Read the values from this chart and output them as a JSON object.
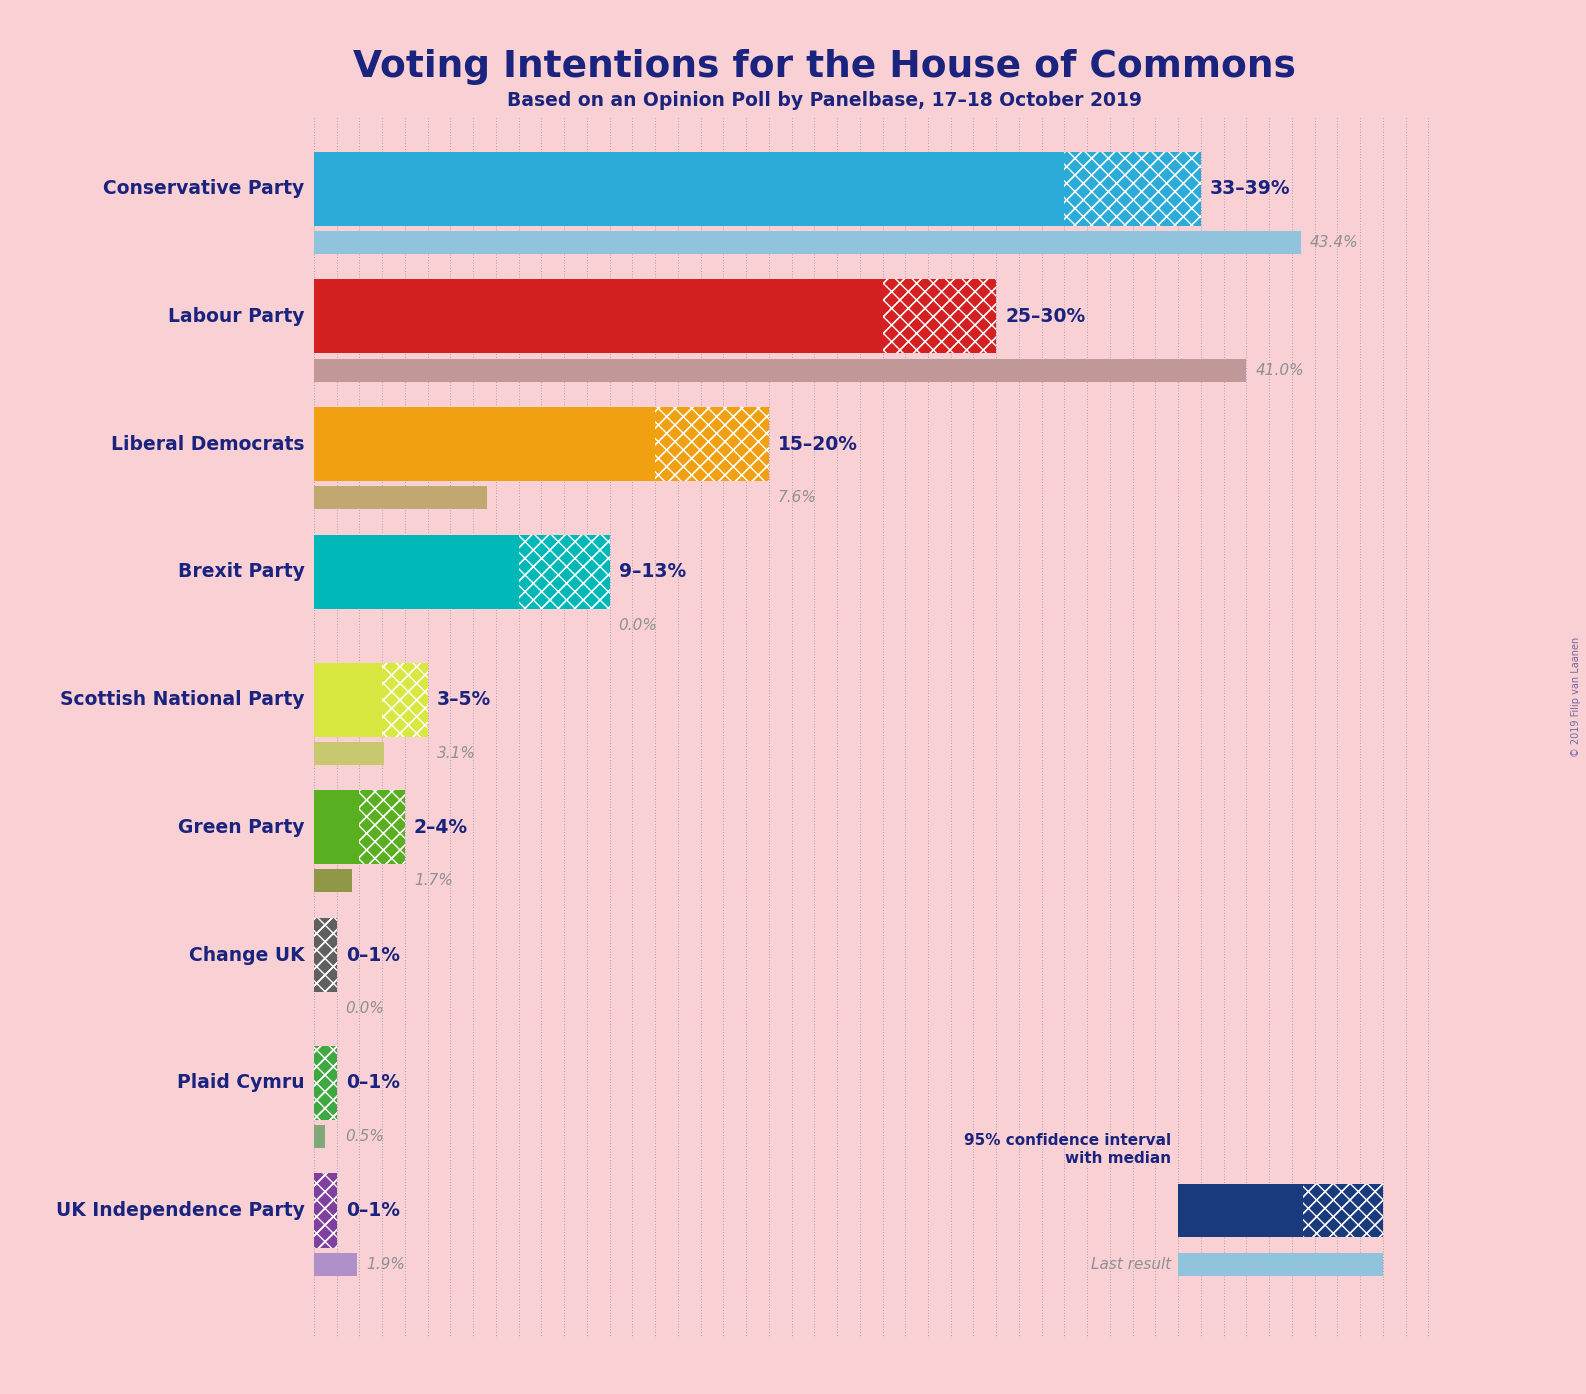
{
  "title": "Voting Intentions for the House of Commons",
  "subtitle": "Based on an Opinion Poll by Panelbase, 17–18 October 2019",
  "copyright": "© 2019 Filip van Laanen",
  "background_color": "#f9d0d4",
  "title_color": "#1a237e",
  "parties": [
    "Conservative Party",
    "Labour Party",
    "Liberal Democrats",
    "Brexit Party",
    "Scottish National Party",
    "Green Party",
    "Change UK",
    "Plaid Cymru",
    "UK Independence Party"
  ],
  "party_colors": [
    "#2bacd8",
    "#d42020",
    "#f0a010",
    "#00b8b8",
    "#d8e840",
    "#58b020",
    "#606060",
    "#40a840",
    "#8040a0"
  ],
  "ci_low": [
    33,
    25,
    15,
    9,
    3,
    2,
    0,
    0,
    0
  ],
  "ci_high": [
    39,
    30,
    20,
    13,
    5,
    4,
    1,
    1,
    1
  ],
  "last_result": [
    43.4,
    41.0,
    7.6,
    0.0,
    3.1,
    1.7,
    0.0,
    0.5,
    1.9
  ],
  "last_result_colors": [
    "#90c4dc",
    "#c09898",
    "#c0a870",
    "#70c0c0",
    "#c8c870",
    "#909848",
    "#909090",
    "#80a878",
    "#b090c8"
  ],
  "range_labels": [
    "33–39%",
    "25–30%",
    "15–20%",
    "9–13%",
    "3–5%",
    "2–4%",
    "0–1%",
    "0–1%",
    "0–1%"
  ],
  "last_result_labels": [
    "43.4%",
    "41.0%",
    "7.6%",
    "0.0%",
    "3.1%",
    "1.7%",
    "0.0%",
    "0.5%",
    "1.9%"
  ],
  "xlim_max": 50,
  "main_bar_height": 0.58,
  "lr_bar_height": 0.18,
  "legend_dark_blue": "#1a3a7e"
}
